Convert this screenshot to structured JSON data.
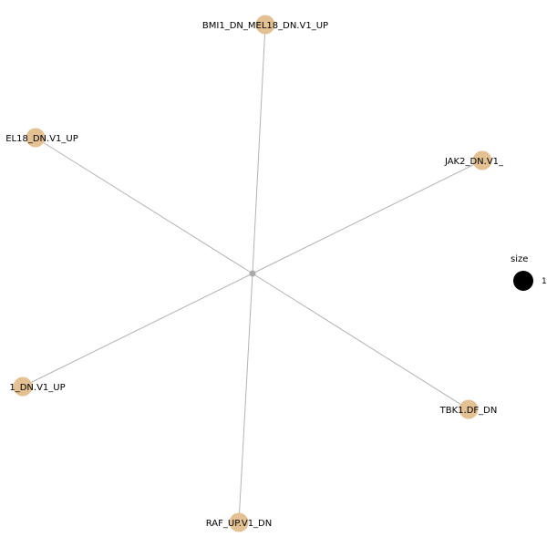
{
  "graph": {
    "node_color": "#e3c193",
    "center_node_color": "#a9a9a9",
    "edge_color": "#b3b3b3",
    "nodes": [
      {
        "label": "BMI1_DN_MEL18_DN.V1_UP"
      },
      {
        "label": "JAK2_DN.V1_"
      },
      {
        "label": "TBK1.DF_DN"
      },
      {
        "label": "RAF_UP.V1_DN"
      },
      {
        "label": "1_DN.V1_UP"
      },
      {
        "label": "EL18_DN.V1_UP"
      }
    ]
  },
  "legend": {
    "title": "size",
    "value": "1",
    "swatch_color": "#000000"
  }
}
